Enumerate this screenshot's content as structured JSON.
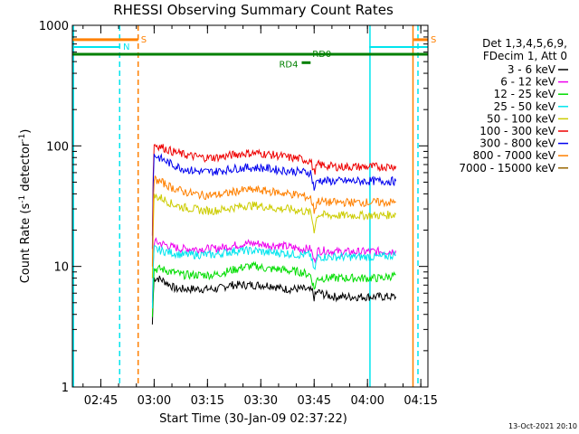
{
  "chart_data": {
    "type": "line",
    "title": "RHESSI Observing Summary Count Rates",
    "xlabel": "Start Time (30-Jan-09 02:37:22)",
    "ylabel_parts": [
      "Count Rate (s",
      "-1",
      " detector",
      "-1",
      ")"
    ],
    "yscale": "log",
    "ylim": [
      1,
      1000
    ],
    "xlim_min": [
      157,
      257
    ],
    "x_ticks": [
      {
        "min": 165,
        "label": "02:45"
      },
      {
        "min": 180,
        "label": "03:00"
      },
      {
        "min": 195,
        "label": "03:15"
      },
      {
        "min": 210,
        "label": "03:30"
      },
      {
        "min": 225,
        "label": "03:45"
      },
      {
        "min": 240,
        "label": "04:00"
      },
      {
        "min": 255,
        "label": "04:15"
      }
    ],
    "x_minor_step_min": 5,
    "y_ticks": [
      {
        "value": 1,
        "label": "1"
      },
      {
        "value": 10,
        "label": "10"
      },
      {
        "value": 100,
        "label": "100"
      },
      {
        "value": 1000,
        "label": "1000"
      }
    ],
    "legend_header": [
      "Det 1,3,4,5,6,9,",
      "FDecim 1, Att 0"
    ],
    "series": [
      {
        "name": "3 - 6 keV",
        "color": "#000000",
        "points": [
          [
            179.5,
            3.3
          ],
          [
            180,
            8
          ],
          [
            181,
            8
          ],
          [
            183,
            7.5
          ],
          [
            186,
            6.5
          ],
          [
            189,
            6.5
          ],
          [
            192,
            6.5
          ],
          [
            195,
            6.5
          ],
          [
            198,
            6.5
          ],
          [
            201,
            7
          ],
          [
            204,
            7
          ],
          [
            207,
            7
          ],
          [
            210,
            7
          ],
          [
            213,
            7
          ],
          [
            216,
            6.5
          ],
          [
            219,
            6.5
          ],
          [
            222,
            6.5
          ],
          [
            224.5,
            6.2
          ],
          [
            225,
            5.5
          ],
          [
            226,
            6.2
          ],
          [
            228,
            5.8
          ],
          [
            231,
            5.6
          ],
          [
            234,
            5.6
          ],
          [
            237,
            5.6
          ],
          [
            240,
            5.6
          ],
          [
            243,
            5.6
          ],
          [
            246,
            5.6
          ],
          [
            248,
            5.6
          ]
        ]
      },
      {
        "name": "6 - 12 keV",
        "color": "#ee00ee",
        "points": [
          [
            179.5,
            5
          ],
          [
            180,
            16
          ],
          [
            182,
            15.5
          ],
          [
            185,
            14.5
          ],
          [
            188,
            14
          ],
          [
            191,
            14
          ],
          [
            194,
            14
          ],
          [
            197,
            14
          ],
          [
            200,
            14.5
          ],
          [
            203,
            15
          ],
          [
            206,
            15.5
          ],
          [
            209,
            15.5
          ],
          [
            212,
            15
          ],
          [
            215,
            15
          ],
          [
            218,
            14.5
          ],
          [
            221,
            14
          ],
          [
            224,
            14
          ],
          [
            225,
            11
          ],
          [
            226,
            13.5
          ],
          [
            229,
            13.5
          ],
          [
            232,
            13.2
          ],
          [
            235,
            13.2
          ],
          [
            238,
            13.2
          ],
          [
            241,
            13.3
          ],
          [
            244,
            13.3
          ],
          [
            248,
            13.5
          ]
        ]
      },
      {
        "name": "12 - 25 keV",
        "color": "#00dd00",
        "points": [
          [
            179.5,
            3.8
          ],
          [
            180,
            9.5
          ],
          [
            182,
            9.5
          ],
          [
            185,
            9
          ],
          [
            188,
            8.5
          ],
          [
            191,
            8.5
          ],
          [
            194,
            8.5
          ],
          [
            197,
            8.5
          ],
          [
            200,
            9
          ],
          [
            203,
            9.5
          ],
          [
            206,
            10
          ],
          [
            209,
            10
          ],
          [
            212,
            9.5
          ],
          [
            215,
            9.5
          ],
          [
            218,
            9.2
          ],
          [
            221,
            9
          ],
          [
            224,
            8.5
          ],
          [
            225,
            6.5
          ],
          [
            226,
            8
          ],
          [
            229,
            8
          ],
          [
            232,
            8
          ],
          [
            235,
            8
          ],
          [
            238,
            8
          ],
          [
            241,
            8
          ],
          [
            244,
            8
          ],
          [
            248,
            8.5
          ]
        ]
      },
      {
        "name": "25 - 50 keV",
        "color": "#00e5ee",
        "points": [
          [
            179.5,
            4.5
          ],
          [
            180,
            14
          ],
          [
            182,
            13.5
          ],
          [
            185,
            13
          ],
          [
            188,
            12.5
          ],
          [
            191,
            12.5
          ],
          [
            194,
            12.5
          ],
          [
            197,
            12.5
          ],
          [
            200,
            13
          ],
          [
            203,
            13.5
          ],
          [
            206,
            13.5
          ],
          [
            209,
            13.5
          ],
          [
            212,
            13
          ],
          [
            215,
            13
          ],
          [
            218,
            12.8
          ],
          [
            221,
            12.5
          ],
          [
            224,
            12.5
          ],
          [
            225,
            9
          ],
          [
            226,
            12
          ],
          [
            229,
            12
          ],
          [
            232,
            12
          ],
          [
            235,
            12
          ],
          [
            238,
            12
          ],
          [
            241,
            12
          ],
          [
            244,
            12
          ],
          [
            248,
            12.5
          ]
        ]
      },
      {
        "name": "50 - 100 keV",
        "color": "#cccc00",
        "points": [
          [
            179.5,
            8
          ],
          [
            180,
            38
          ],
          [
            182,
            37
          ],
          [
            185,
            33
          ],
          [
            188,
            31
          ],
          [
            191,
            30
          ],
          [
            194,
            29
          ],
          [
            197,
            29
          ],
          [
            200,
            30
          ],
          [
            203,
            31
          ],
          [
            206,
            32
          ],
          [
            209,
            32
          ],
          [
            212,
            31
          ],
          [
            215,
            30
          ],
          [
            218,
            30
          ],
          [
            221,
            29
          ],
          [
            224,
            28
          ],
          [
            225,
            20
          ],
          [
            226,
            27
          ],
          [
            229,
            26.5
          ],
          [
            232,
            26.5
          ],
          [
            235,
            26.5
          ],
          [
            238,
            26.5
          ],
          [
            241,
            26.5
          ],
          [
            244,
            26.5
          ],
          [
            248,
            27
          ]
        ]
      },
      {
        "name": "100 - 300 keV",
        "color": "#ee0000",
        "points": [
          [
            179.5,
            18
          ],
          [
            180,
            103
          ],
          [
            182,
            98
          ],
          [
            185,
            90
          ],
          [
            188,
            85
          ],
          [
            191,
            82
          ],
          [
            194,
            80
          ],
          [
            197,
            80
          ],
          [
            200,
            82
          ],
          [
            203,
            85
          ],
          [
            206,
            87
          ],
          [
            209,
            87
          ],
          [
            212,
            85
          ],
          [
            215,
            83
          ],
          [
            218,
            80
          ],
          [
            221,
            78
          ],
          [
            224,
            75
          ],
          [
            225,
            60
          ],
          [
            226,
            70
          ],
          [
            229,
            68
          ],
          [
            232,
            67
          ],
          [
            235,
            67
          ],
          [
            238,
            67
          ],
          [
            241,
            67
          ],
          [
            244,
            67
          ],
          [
            248,
            68
          ]
        ]
      },
      {
        "name": "300 - 800 keV",
        "color": "#0000ee",
        "points": [
          [
            179.5,
            14
          ],
          [
            180,
            84
          ],
          [
            182,
            78
          ],
          [
            185,
            70
          ],
          [
            188,
            65
          ],
          [
            191,
            62
          ],
          [
            194,
            61
          ],
          [
            197,
            61
          ],
          [
            200,
            63
          ],
          [
            203,
            65
          ],
          [
            206,
            66
          ],
          [
            209,
            66
          ],
          [
            212,
            65
          ],
          [
            215,
            63
          ],
          [
            218,
            62
          ],
          [
            221,
            61
          ],
          [
            224,
            60
          ],
          [
            225,
            44
          ],
          [
            226,
            52
          ],
          [
            229,
            51
          ],
          [
            232,
            51
          ],
          [
            235,
            51
          ],
          [
            238,
            51
          ],
          [
            241,
            51
          ],
          [
            244,
            51
          ],
          [
            248,
            51
          ]
        ]
      },
      {
        "name": "800 - 7000 keV",
        "color": "#ff8000",
        "points": [
          [
            179.5,
            10
          ],
          [
            180,
            53
          ],
          [
            182,
            50
          ],
          [
            185,
            45
          ],
          [
            188,
            42
          ],
          [
            191,
            40
          ],
          [
            194,
            39
          ],
          [
            197,
            39
          ],
          [
            200,
            40
          ],
          [
            203,
            42
          ],
          [
            206,
            43
          ],
          [
            209,
            43
          ],
          [
            212,
            42
          ],
          [
            215,
            41
          ],
          [
            218,
            40
          ],
          [
            221,
            39
          ],
          [
            224,
            37
          ],
          [
            225,
            29
          ],
          [
            226,
            35
          ],
          [
            229,
            34
          ],
          [
            232,
            34
          ],
          [
            235,
            34
          ],
          [
            238,
            34
          ],
          [
            241,
            34
          ],
          [
            244,
            34
          ],
          [
            248,
            34
          ]
        ]
      },
      {
        "name": "7000 - 15000 keV",
        "color": "#996600",
        "points": []
      }
    ],
    "flag_lines": [
      {
        "label": "S",
        "color": "#ff8000",
        "value": 760,
        "x_start": 157,
        "x_end": 175.5,
        "stroke": 3
      },
      {
        "label": "S",
        "color": "#ff8000",
        "value": 760,
        "x_start": 253,
        "x_end": 257,
        "stroke": 3
      },
      {
        "label": "N",
        "color": "#00e5ee",
        "value": 660,
        "x_start": 157,
        "x_end": 170.5,
        "stroke": 2
      },
      {
        "label": "",
        "color": "#00e5ee",
        "value": 660,
        "x_start": 240.5,
        "x_end": 257,
        "stroke": 2
      },
      {
        "label": "RD0",
        "color": "#008000",
        "value": 575,
        "x_start": 157,
        "x_end": 257,
        "stroke": 3
      },
      {
        "label": "RD4",
        "color": "#008000",
        "value": 490,
        "x_start": 221.5,
        "x_end": 224,
        "stroke": 3
      }
    ],
    "vertical_markers": [
      {
        "min": 157.3,
        "color": "#00e5ee",
        "dash": false
      },
      {
        "min": 170.3,
        "color": "#00e5ee",
        "dash": true
      },
      {
        "min": 175.5,
        "color": "#ff8000",
        "dash": true
      },
      {
        "min": 240.7,
        "color": "#00e5ee",
        "dash": false
      },
      {
        "min": 252.8,
        "color": "#ff8000",
        "dash": false
      },
      {
        "min": 254.2,
        "color": "#00e5ee",
        "dash": true
      }
    ],
    "timestamp": "13-Oct-2021 20:10"
  }
}
